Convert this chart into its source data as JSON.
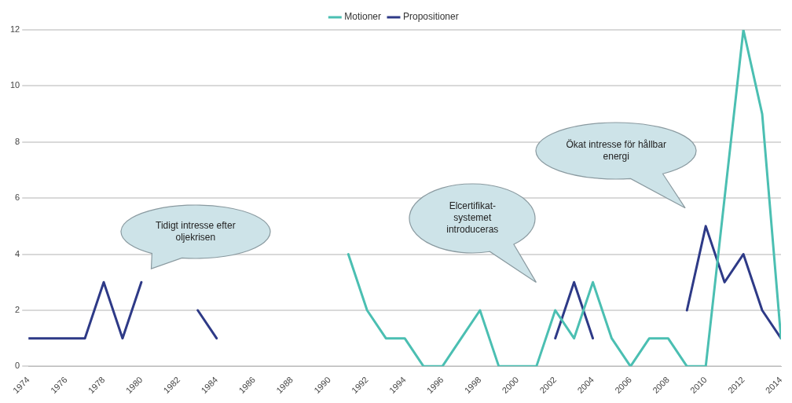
{
  "chart_data": {
    "type": "line",
    "x": [
      1974,
      1975,
      1976,
      1977,
      1978,
      1979,
      1980,
      1981,
      1982,
      1983,
      1984,
      1985,
      1986,
      1987,
      1988,
      1989,
      1990,
      1991,
      1992,
      1993,
      1994,
      1995,
      1996,
      1997,
      1998,
      1999,
      2000,
      2001,
      2002,
      2003,
      2004,
      2005,
      2006,
      2007,
      2008,
      2009,
      2010,
      2011,
      2012,
      2013,
      2014
    ],
    "series": [
      {
        "name": "Motioner",
        "color": "#4bbfb2",
        "values": [
          null,
          null,
          null,
          null,
          null,
          null,
          null,
          null,
          null,
          null,
          null,
          null,
          null,
          null,
          null,
          null,
          null,
          4,
          2,
          1,
          1,
          0,
          0,
          1,
          2,
          0,
          0,
          0,
          2,
          1,
          3,
          1,
          0,
          1,
          1,
          0,
          0,
          6,
          12,
          9,
          1
        ]
      },
      {
        "name": "Propositioner",
        "color": "#2e3a87",
        "values": [
          1,
          1,
          1,
          1,
          3,
          1,
          3,
          null,
          null,
          2,
          1,
          null,
          null,
          null,
          null,
          null,
          null,
          null,
          null,
          null,
          null,
          null,
          null,
          null,
          null,
          null,
          null,
          null,
          1,
          3,
          1,
          null,
          null,
          null,
          null,
          2,
          5,
          3,
          4,
          2,
          1
        ]
      }
    ],
    "xlim": [
      1974,
      2014
    ],
    "xticks": [
      1974,
      1976,
      1978,
      1980,
      1982,
      1984,
      1986,
      1988,
      1990,
      1992,
      1994,
      1996,
      1998,
      2000,
      2002,
      2004,
      2006,
      2008,
      2010,
      2012,
      2014
    ],
    "ylim": [
      0,
      12
    ],
    "yticks": [
      0,
      2,
      4,
      6,
      8,
      10,
      12
    ],
    "grid": "y",
    "legend": "top",
    "marker": "none",
    "line_style": "solid",
    "annotations": [
      "Tidigt intresse efter oljekrisen",
      "Elcertifikat-systemet introduceras",
      "Ökat intresse för hållbar energi"
    ]
  }
}
